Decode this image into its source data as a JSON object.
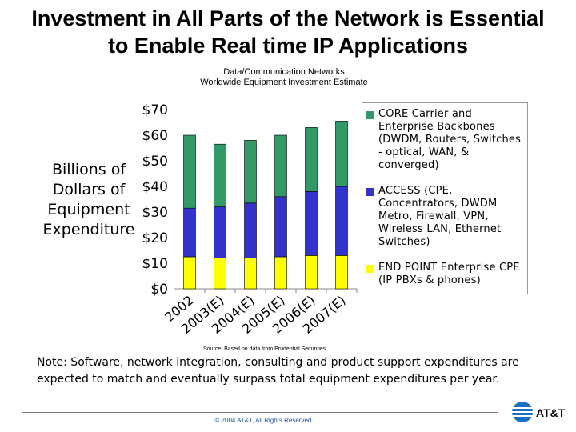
{
  "slide": {
    "title_line1": "Investment in All Parts of the Network is Essential",
    "title_line2": "to Enable Real time IP Applications",
    "subtitle_line1": "Data/Communication Networks",
    "subtitle_line2": "Worldwide Equipment Investment Estimate",
    "ylabel_lines": [
      "Billions of",
      "Dollars of",
      "Equipment",
      "Expenditure"
    ],
    "source": "Source: Based on data from Prudential Securities",
    "note": "Note: Software, network integration, consulting and product support expenditures are expected to match and eventually surpass total equipment expenditures per year.",
    "copyright": "© 2004 AT&T, All Rights Reserved.",
    "logo_text": "AT&T"
  },
  "chart_data": {
    "type": "bar",
    "stacked": true,
    "title": "Data/Communication Networks Worldwide Equipment Investment Estimate",
    "xlabel": "",
    "ylabel": "Billions of Dollars of Equipment Expenditure",
    "ylim": [
      0,
      70
    ],
    "yticks": [
      "$0",
      "$10",
      "$20",
      "$30",
      "$40",
      "$50",
      "$60",
      "$70"
    ],
    "yticks_values": [
      0,
      10,
      20,
      30,
      40,
      50,
      60,
      70
    ],
    "categories": [
      "2002",
      "2003(E)",
      "2004(E)",
      "2005(E)",
      "2006(E)",
      "2007(E)"
    ],
    "series": [
      {
        "name": "END POINT Enterprise CPE (IP PBXs & phones)",
        "color": "#ffff00",
        "values": [
          12.5,
          12,
          12,
          12.5,
          13,
          13
        ]
      },
      {
        "name": "ACCESS (CPE, Concentrators, DWDM Metro, Firewall, VPN, Wireless LAN, Ethernet Switches)",
        "color": "#3333cc",
        "values": [
          19,
          20,
          21.5,
          23.5,
          25,
          27
        ]
      },
      {
        "name": "CORE Carrier and Enterprise Backbones (DWDM, Routers, Switches - optical, WAN, & converged)",
        "color": "#339966",
        "values": [
          28.5,
          24.5,
          24.5,
          24,
          25,
          25.5
        ]
      }
    ],
    "legend": [
      {
        "label": "CORE Carrier and Enterprise Backbones (DWDM, Routers, Switches - optical, WAN, & converged)",
        "color": "#339966"
      },
      {
        "label": "ACCESS (CPE, Concentrators, DWDM Metro, Firewall, VPN, Wireless LAN, Ethernet Switches)",
        "color": "#3333cc"
      },
      {
        "label": "END POINT Enterprise CPE (IP PBXs & phones)",
        "color": "#ffff00"
      }
    ],
    "legend_position": "right",
    "grid": false
  }
}
